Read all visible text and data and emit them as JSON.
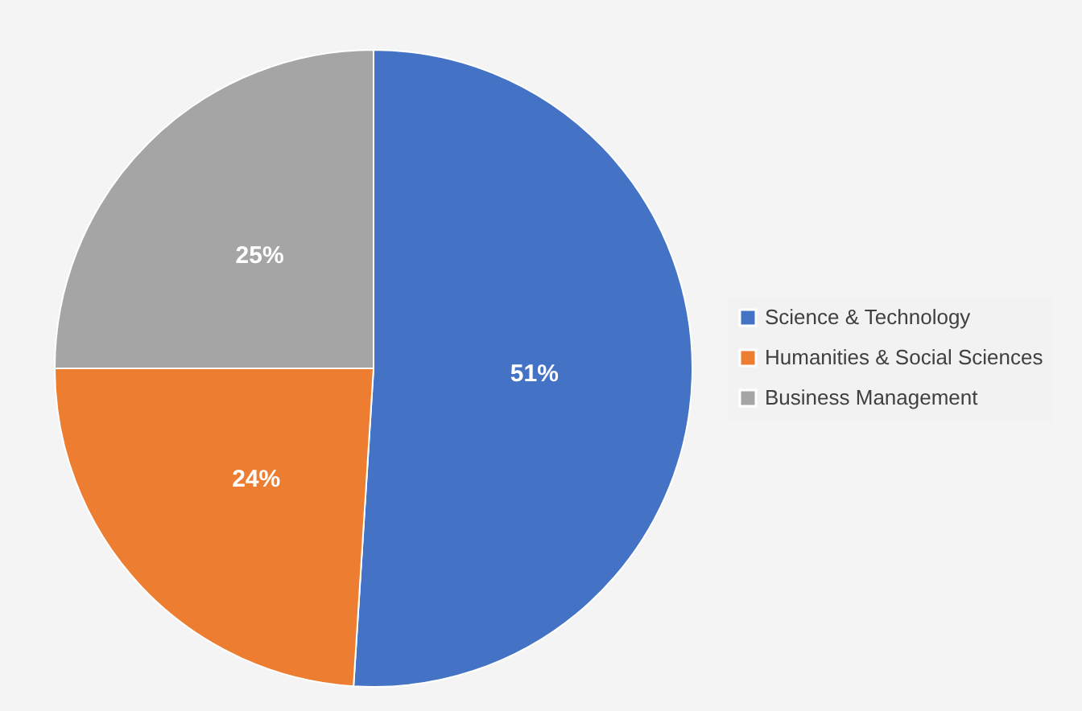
{
  "chart_data": {
    "type": "pie",
    "categories": [
      "Science & Technology",
      "Humanities & Social Sciences",
      "Business Management"
    ],
    "values": [
      51,
      24,
      25
    ],
    "colors": [
      "#4472c4",
      "#ed7d31",
      "#a5a5a5"
    ],
    "value_labels": [
      "51%",
      "24%",
      "25%"
    ],
    "legend": "right"
  }
}
